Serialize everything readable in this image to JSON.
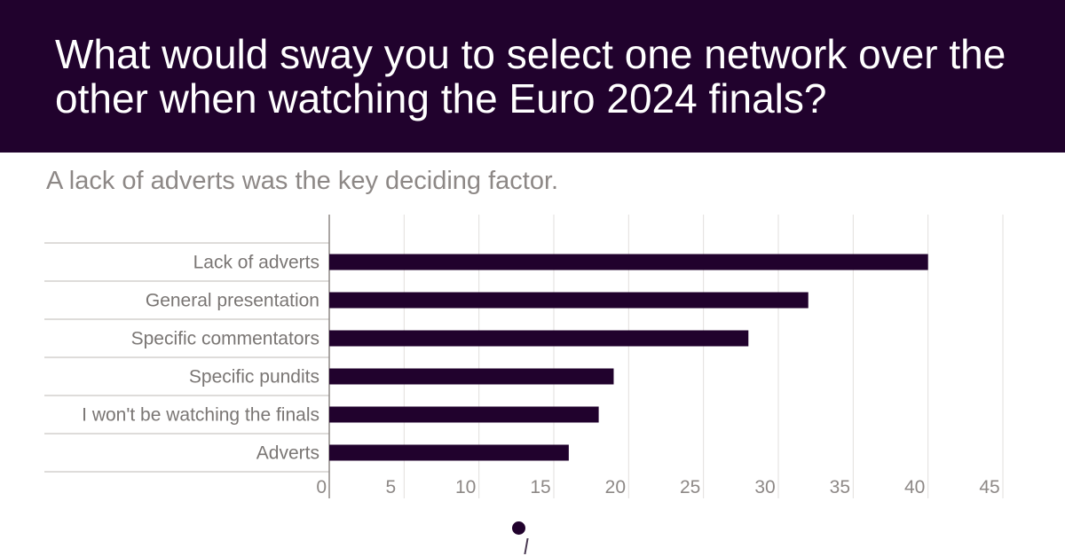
{
  "header": {
    "title": "What would sway you to select one network over the other when watching the Euro 2024 finals?"
  },
  "subtitle": "A lack of adverts was the key deciding factor.",
  "colors": {
    "header_bg": "#21022d",
    "bar": "#21022d",
    "grid": "#e2dfdd",
    "row_rule": "#bcb8b5",
    "axis": "#8d8886"
  },
  "chart_data": {
    "type": "bar",
    "orientation": "horizontal",
    "categories": [
      "Lack of adverts",
      "General presentation",
      "Specific commentators",
      "Specific pundits",
      "I won't be watching the finals",
      "Adverts"
    ],
    "values": [
      40,
      32,
      28,
      19,
      18,
      16
    ],
    "xlim": [
      0,
      45
    ],
    "xticks": [
      "0",
      "5",
      "10",
      "15",
      "20",
      "25",
      "30",
      "35",
      "40",
      "45"
    ],
    "grid": true,
    "legend": "none"
  },
  "pager": {
    "dot_icon": "dot-icon"
  }
}
